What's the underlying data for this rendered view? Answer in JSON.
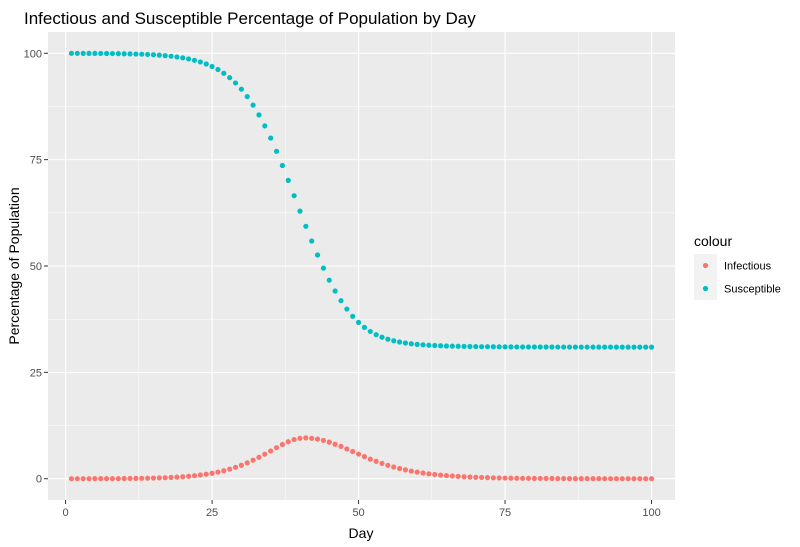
{
  "chart_data": {
    "type": "scatter",
    "title": "Infectious and Susceptible Percentage of Population by Day",
    "xlabel": "Day",
    "ylabel": "Percentage of Population",
    "xlim": [
      -3,
      104
    ],
    "ylim": [
      -5,
      105
    ],
    "x_ticks": [
      0,
      25,
      50,
      75,
      100
    ],
    "y_ticks": [
      0,
      25,
      50,
      75,
      100
    ],
    "grid": true,
    "legend": {
      "title": "colour",
      "position": "right"
    },
    "series": [
      {
        "name": "Infectious",
        "color": "#F8766D",
        "x": [
          1,
          2,
          3,
          4,
          5,
          6,
          7,
          8,
          9,
          10,
          11,
          12,
          13,
          14,
          15,
          16,
          17,
          18,
          19,
          20,
          21,
          22,
          23,
          24,
          25,
          26,
          27,
          28,
          29,
          30,
          31,
          32,
          33,
          34,
          35,
          36,
          37,
          38,
          39,
          40,
          41,
          42,
          43,
          44,
          45,
          46,
          47,
          48,
          49,
          50,
          51,
          52,
          53,
          54,
          55,
          56,
          57,
          58,
          59,
          60,
          61,
          62,
          63,
          64,
          65,
          66,
          67,
          68,
          69,
          70,
          71,
          72,
          73,
          74,
          75,
          76,
          77,
          78,
          79,
          80,
          81,
          82,
          83,
          84,
          85,
          86,
          87,
          88,
          89,
          90,
          91,
          92,
          93,
          94,
          95,
          96,
          97,
          98,
          99,
          100
        ],
        "y": [
          0.01,
          0.01,
          0.01,
          0.01,
          0.02,
          0.02,
          0.03,
          0.03,
          0.04,
          0.05,
          0.06,
          0.08,
          0.1,
          0.13,
          0.16,
          0.2,
          0.25,
          0.31,
          0.38,
          0.47,
          0.58,
          0.71,
          0.87,
          1.06,
          1.29,
          1.56,
          1.88,
          2.25,
          2.68,
          3.17,
          3.73,
          4.36,
          5.04,
          5.77,
          6.53,
          7.3,
          8.04,
          8.7,
          9.2,
          9.5,
          9.6,
          9.5,
          9.3,
          9.0,
          8.6,
          8.1,
          7.6,
          7.0,
          6.4,
          5.8,
          5.2,
          4.6,
          4.1,
          3.6,
          3.15,
          2.75,
          2.4,
          2.08,
          1.8,
          1.56,
          1.35,
          1.16,
          1.0,
          0.86,
          0.74,
          0.64,
          0.55,
          0.47,
          0.4,
          0.35,
          0.3,
          0.26,
          0.22,
          0.19,
          0.16,
          0.14,
          0.12,
          0.1,
          0.09,
          0.08,
          0.07,
          0.06,
          0.05,
          0.04,
          0.04,
          0.03,
          0.03,
          0.02,
          0.02,
          0.02,
          0.02,
          0.01,
          0.01,
          0.01,
          0.01,
          0.01,
          0.01,
          0.01,
          0.01,
          0.01
        ]
      },
      {
        "name": "Susceptible",
        "color": "#00BFC4",
        "x": [
          1,
          2,
          3,
          4,
          5,
          6,
          7,
          8,
          9,
          10,
          11,
          12,
          13,
          14,
          15,
          16,
          17,
          18,
          19,
          20,
          21,
          22,
          23,
          24,
          25,
          26,
          27,
          28,
          29,
          30,
          31,
          32,
          33,
          34,
          35,
          36,
          37,
          38,
          39,
          40,
          41,
          42,
          43,
          44,
          45,
          46,
          47,
          48,
          49,
          50,
          51,
          52,
          53,
          54,
          55,
          56,
          57,
          58,
          59,
          60,
          61,
          62,
          63,
          64,
          65,
          66,
          67,
          68,
          69,
          70,
          71,
          72,
          73,
          74,
          75,
          76,
          77,
          78,
          79,
          80,
          81,
          82,
          83,
          84,
          85,
          86,
          87,
          88,
          89,
          90,
          91,
          92,
          93,
          94,
          95,
          96,
          97,
          98,
          99,
          100
        ],
        "y": [
          99.99,
          99.99,
          99.98,
          99.98,
          99.97,
          99.96,
          99.95,
          99.93,
          99.91,
          99.89,
          99.86,
          99.82,
          99.78,
          99.72,
          99.65,
          99.56,
          99.45,
          99.31,
          99.14,
          98.93,
          98.67,
          98.35,
          97.96,
          97.48,
          96.89,
          96.18,
          95.31,
          94.27,
          93.03,
          91.56,
          89.83,
          87.82,
          85.52,
          82.93,
          80.07,
          76.95,
          73.62,
          70.12,
          66.52,
          62.9,
          59.33,
          55.87,
          52.58,
          49.5,
          46.67,
          44.12,
          41.85,
          39.88,
          38.18,
          36.75,
          35.58,
          34.62,
          33.86,
          33.26,
          32.8,
          32.43,
          32.14,
          31.9,
          31.72,
          31.58,
          31.47,
          31.38,
          31.31,
          31.25,
          31.2,
          31.16,
          31.13,
          31.1,
          31.08,
          31.06,
          31.04,
          31.03,
          31.02,
          31.01,
          31.0,
          30.99,
          30.98,
          30.98,
          30.97,
          30.97,
          30.96,
          30.96,
          30.96,
          30.95,
          30.95,
          30.95,
          30.95,
          30.94,
          30.94,
          30.94,
          30.94,
          30.94,
          30.94,
          30.93,
          30.93,
          30.93,
          30.93,
          30.93,
          30.93,
          30.93
        ]
      }
    ]
  }
}
